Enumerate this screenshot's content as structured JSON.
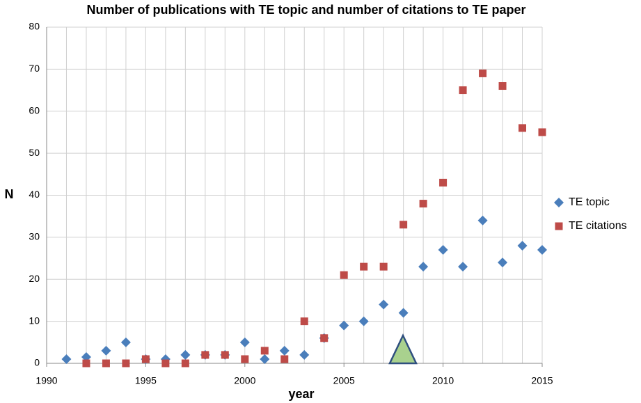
{
  "chart_data": {
    "type": "scatter",
    "title": "Number of publications with TE topic and number of citations to TE paper",
    "xlabel": "year",
    "ylabel": "N",
    "xlim": [
      1990,
      2015
    ],
    "xticks": [
      1990,
      1995,
      2000,
      2005,
      2010,
      2015
    ],
    "xgrid_step": 1,
    "ylim": [
      0,
      80
    ],
    "yticks": [
      0,
      10,
      20,
      30,
      40,
      50,
      60,
      70,
      80
    ],
    "grid": true,
    "legend": "right",
    "series": [
      {
        "name": "TE topic",
        "color": "#4a7ebb",
        "marker": "diamond",
        "x": [
          1991,
          1992,
          1993,
          1994,
          1995,
          1996,
          1997,
          1998,
          1999,
          2000,
          2001,
          2002,
          2003,
          2004,
          2005,
          2006,
          2007,
          2008,
          2009,
          2010,
          2011,
          2012,
          2013,
          2014,
          2015
        ],
        "values": [
          1,
          1.5,
          3,
          5,
          1,
          1,
          2,
          2,
          2,
          5,
          1,
          3,
          2,
          6,
          9,
          10,
          14,
          12,
          23,
          27,
          23,
          34,
          24,
          28,
          27
        ]
      },
      {
        "name": "TE citations",
        "color": "#be4b48",
        "marker": "square",
        "x": [
          1992,
          1993,
          1994,
          1995,
          1996,
          1997,
          1998,
          1999,
          2000,
          2001,
          2002,
          2003,
          2004,
          2005,
          2006,
          2007,
          2008,
          2009,
          2010,
          2011,
          2012,
          2013,
          2014,
          2015
        ],
        "values": [
          0,
          0,
          0,
          1,
          0,
          0,
          2,
          2,
          1,
          3,
          1,
          10,
          6,
          21,
          23,
          23,
          33,
          38,
          43,
          65,
          69,
          66,
          56,
          55
        ]
      }
    ]
  }
}
